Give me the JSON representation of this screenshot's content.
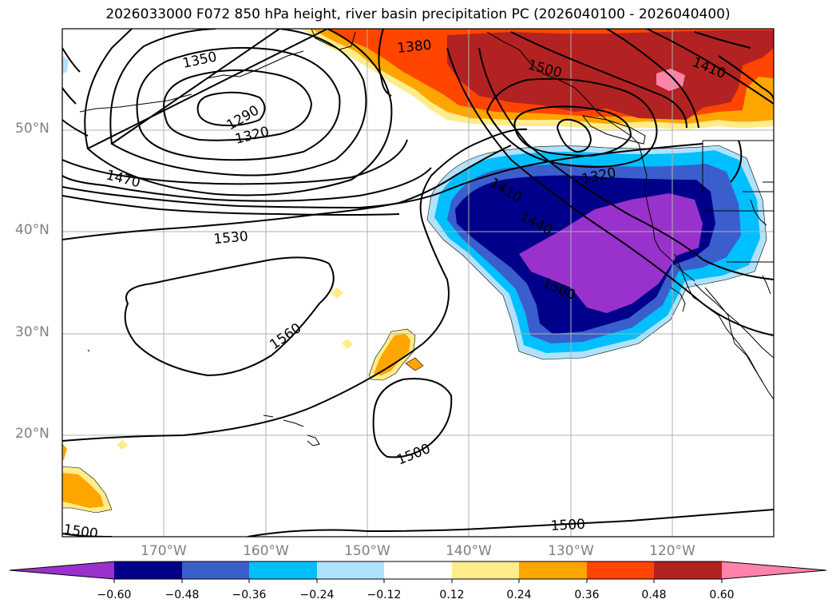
{
  "title": "2026033000 F072 850 hPa height, river basin precipitation PC (2026040100 - 2026040400)",
  "map": {
    "lat_labels": [
      "50°N",
      "40°N",
      "30°N",
      "20°N"
    ],
    "lon_labels": [
      "170°W",
      "160°W",
      "150°W",
      "140°W",
      "130°W",
      "120°W"
    ],
    "contour_labels": [
      "1350",
      "1290",
      "1320",
      "1380",
      "1410",
      "1470",
      "1530",
      "1560",
      "1500",
      "1500",
      "1500",
      "1500",
      "1410",
      "1440",
      "1320",
      "1500"
    ],
    "grid_color": "#b0b0b0",
    "coast_color": "#000000"
  },
  "colorbar": {
    "colors": [
      "#9932cc",
      "#00008b",
      "#3a5fcd",
      "#00bfff",
      "#b0e2ff",
      "#ffffff",
      "#ffec8b",
      "#ffa500",
      "#ff4500",
      "#b22222",
      "#ff82ab"
    ],
    "ticks": [
      "−0.60",
      "−0.48",
      "−0.36",
      "−0.24",
      "−0.12",
      "0.12",
      "0.24",
      "0.36",
      "0.48",
      "0.60"
    ]
  }
}
